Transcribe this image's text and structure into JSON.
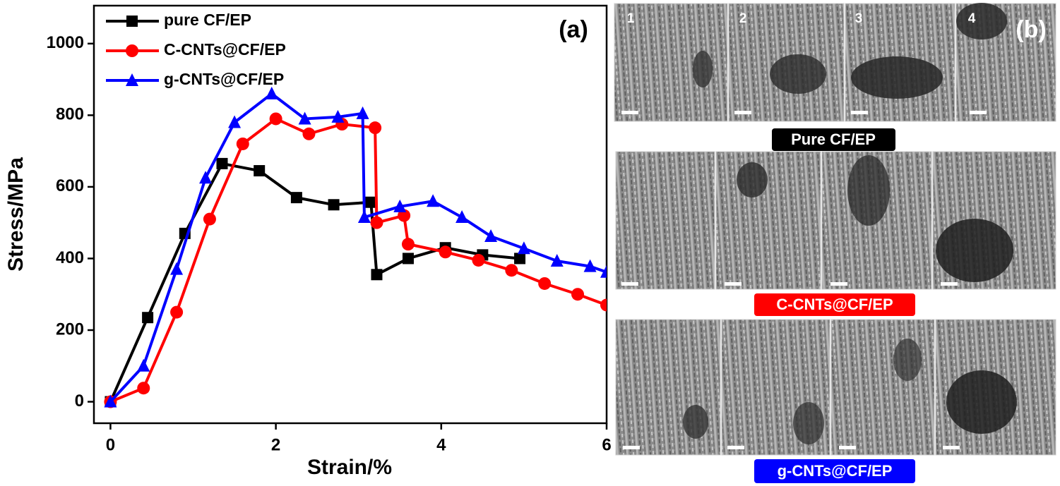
{
  "chart_data": {
    "type": "line",
    "x_label": "Strain/%",
    "y_label": "Stress/MPa",
    "annotation": "(a)",
    "xlim": [
      -0.2,
      6
    ],
    "ylim": [
      -60,
      1106
    ],
    "xticks": [
      0,
      2,
      4,
      6
    ],
    "yticks": [
      0,
      200,
      400,
      600,
      800,
      1000
    ],
    "legend": "top-left",
    "series": [
      {
        "name": "pure CF/EP",
        "color": "#000000",
        "marker": "square",
        "x": [
          0,
          0.45,
          0.9,
          1.35,
          1.8,
          2.25,
          2.7,
          3.15,
          3.22,
          3.6,
          4.05,
          4.5,
          4.95
        ],
        "values": [
          0,
          235,
          470,
          665,
          645,
          570,
          550,
          557,
          355,
          400,
          430,
          410,
          400
        ]
      },
      {
        "name": "C-CNTs@CF/EP",
        "color": "#ff0000",
        "marker": "circle",
        "x": [
          0,
          0.4,
          0.8,
          1.2,
          1.6,
          2.0,
          2.4,
          2.8,
          3.2,
          3.22,
          3.55,
          3.6,
          4.05,
          4.45,
          4.85,
          5.25,
          5.65,
          6
        ],
        "values": [
          0,
          38,
          250,
          510,
          720,
          790,
          748,
          775,
          765,
          500,
          520,
          440,
          418,
          395,
          367,
          330,
          300,
          270
        ]
      },
      {
        "name": "g-CNTs@CF/EP",
        "color": "#0000ff",
        "marker": "triangle",
        "x": [
          0,
          0.4,
          0.8,
          1.15,
          1.5,
          1.95,
          2.35,
          2.75,
          3.05,
          3.07,
          3.5,
          3.9,
          4.25,
          4.6,
          5.0,
          5.4,
          5.8,
          6
        ],
        "values": [
          0,
          100,
          370,
          625,
          780,
          860,
          790,
          795,
          805,
          515,
          545,
          560,
          515,
          462,
          428,
          393,
          378,
          362
        ]
      }
    ]
  },
  "micrographs": {
    "label": "(b)",
    "image_numbers": [
      "1",
      "2",
      "3",
      "4"
    ],
    "captions": [
      "Pure CF/EP",
      "C-CNTs@CF/EP",
      "g-CNTs@CF/EP"
    ]
  }
}
